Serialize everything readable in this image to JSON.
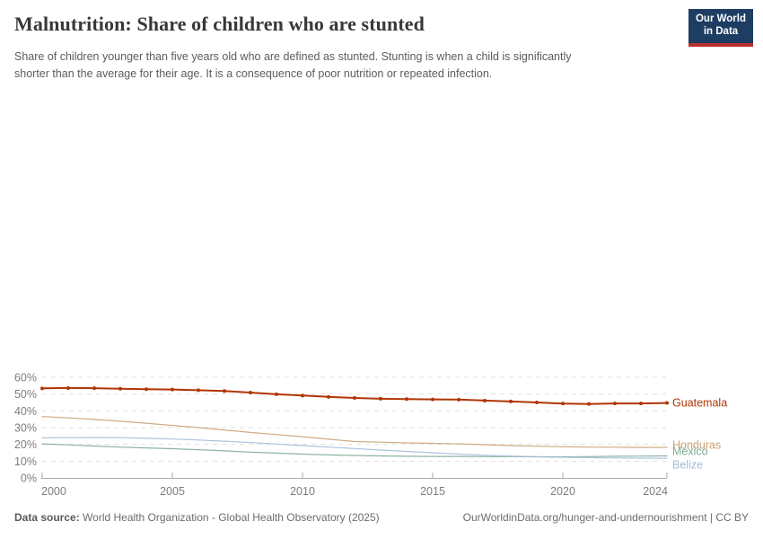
{
  "header": {
    "title": "Malnutrition: Share of children who are stunted",
    "subtitle_lines": [
      "Share of children younger than five years old who are defined as stunted. Stunting is when a child is significantly",
      "shorter than the average for their age. It is a consequence of poor nutrition or repeated infection."
    ]
  },
  "logo": {
    "line1": "Our World",
    "line2": "in Data"
  },
  "chart_data": {
    "type": "line",
    "title": "Malnutrition: Share of children who are stunted",
    "x": [
      2000,
      2001,
      2002,
      2003,
      2004,
      2005,
      2006,
      2007,
      2008,
      2009,
      2010,
      2011,
      2012,
      2013,
      2014,
      2015,
      2016,
      2017,
      2018,
      2019,
      2020,
      2021,
      2022,
      2023,
      2024
    ],
    "xlim": [
      2000,
      2024
    ],
    "ylim": [
      0,
      60
    ],
    "yticks": [
      0,
      10,
      20,
      30,
      40,
      50,
      60
    ],
    "ytick_suffix": "%",
    "xticks": [
      2000,
      2005,
      2010,
      2015,
      2020,
      2024
    ],
    "grid": "horizontal-dashed",
    "legend_position": "end-of-line-labels",
    "series": [
      {
        "name": "Guatemala",
        "color": "#b13507",
        "emphasis": true,
        "markers": true,
        "values": [
          53.4,
          53.6,
          53.5,
          53.2,
          52.9,
          52.7,
          52.3,
          51.8,
          50.9,
          49.9,
          49.1,
          48.3,
          47.7,
          47.2,
          47.0,
          46.8,
          46.7,
          46.1,
          45.6,
          45.0,
          44.3,
          44.1,
          44.4,
          44.4,
          44.7
        ]
      },
      {
        "name": "Honduras",
        "color": "#c9a178",
        "emphasis": false,
        "markers": false,
        "values": [
          36.6,
          35.8,
          34.9,
          33.8,
          32.6,
          31.3,
          30.0,
          28.6,
          27.1,
          25.8,
          24.6,
          23.1,
          21.7,
          21.3,
          20.9,
          20.6,
          20.3,
          19.8,
          19.3,
          18.9,
          18.6,
          18.4,
          18.3,
          18.2,
          18.2
        ]
      },
      {
        "name": "Mexico",
        "color": "#7fac97",
        "emphasis": false,
        "markers": false,
        "values": [
          20.3,
          19.7,
          19.0,
          18.4,
          17.9,
          17.4,
          16.8,
          16.1,
          15.4,
          14.8,
          14.2,
          13.7,
          13.4,
          13.1,
          12.9,
          12.8,
          12.8,
          12.7,
          12.7,
          12.6,
          12.6,
          12.7,
          12.9,
          13.0,
          13.1
        ]
      },
      {
        "name": "Belize",
        "color": "#a3bcd9",
        "emphasis": false,
        "markers": false,
        "values": [
          23.9,
          24.0,
          24.1,
          24.0,
          23.6,
          23.2,
          22.6,
          21.9,
          21.1,
          20.2,
          19.3,
          18.4,
          17.5,
          16.6,
          15.8,
          15.0,
          14.2,
          13.5,
          13.0,
          12.6,
          12.3,
          12.1,
          11.9,
          11.8,
          11.7
        ]
      }
    ],
    "colors": {
      "grid": "#e1e1e1",
      "axis": "#a9a9a9",
      "tick_label": "#7e7e7e"
    }
  },
  "footer": {
    "source_label": "Data source:",
    "source_text": " World Health Organization - Global Health Observatory (2025)",
    "right_text": "OurWorldinData.org/hunger-and-undernourishment | CC BY"
  }
}
